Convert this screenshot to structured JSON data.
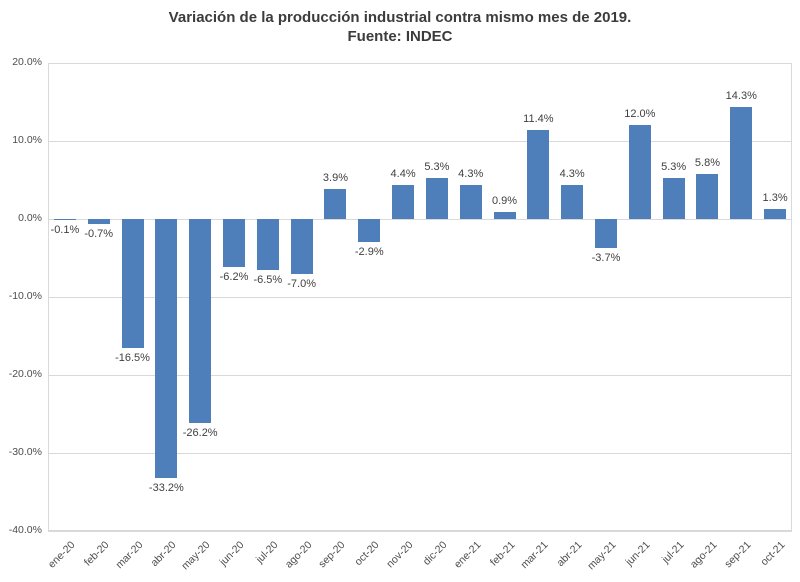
{
  "chart_data": {
    "type": "bar",
    "title": "Variación de la producción industrial contra mismo mes de 2019.",
    "subtitle": "Fuente: INDEC",
    "categories": [
      "ene-20",
      "feb-20",
      "mar-20",
      "abr-20",
      "may-20",
      "jun-20",
      "jul-20",
      "ago-20",
      "sep-20",
      "oct-20",
      "nov-20",
      "dic-20",
      "ene-21",
      "feb-21",
      "mar-21",
      "abr-21",
      "may-21",
      "jun-21",
      "jul-21",
      "ago-21",
      "sep-21",
      "oct-21"
    ],
    "values": [
      -0.1,
      -0.7,
      -16.5,
      -33.2,
      -26.2,
      -6.2,
      -6.5,
      -7.0,
      3.9,
      -2.9,
      4.4,
      5.3,
      4.3,
      0.9,
      11.4,
      4.3,
      -3.7,
      12.0,
      5.3,
      5.8,
      14.3,
      1.3
    ],
    "value_labels": [
      "-0.1%",
      "-0.7%",
      "-16.5%",
      "-33.2%",
      "-26.2%",
      "-6.2%",
      "-6.5%",
      "-7.0%",
      "3.9%",
      "-2.9%",
      "4.4%",
      "5.3%",
      "4.3%",
      "0.9%",
      "11.4%",
      "4.3%",
      "-3.7%",
      "12.0%",
      "5.3%",
      "5.8%",
      "14.3%",
      "1.3%"
    ],
    "ylim": [
      -40,
      20
    ],
    "y_ticks": [
      20,
      10,
      0,
      -10,
      -20,
      -30,
      -40
    ],
    "y_tick_labels": [
      "20.0%",
      "10.0%",
      "0.0%",
      "-10.0%",
      "-20.0%",
      "-30.0%",
      "-40.0%"
    ],
    "grid": true,
    "legend": false,
    "xlabel": "",
    "ylabel": "",
    "bar_color": "#4e7fba",
    "grid_color": "#d9d9d9",
    "value_label_color": "#404040",
    "axis_label_color": "#4d4d4d"
  }
}
